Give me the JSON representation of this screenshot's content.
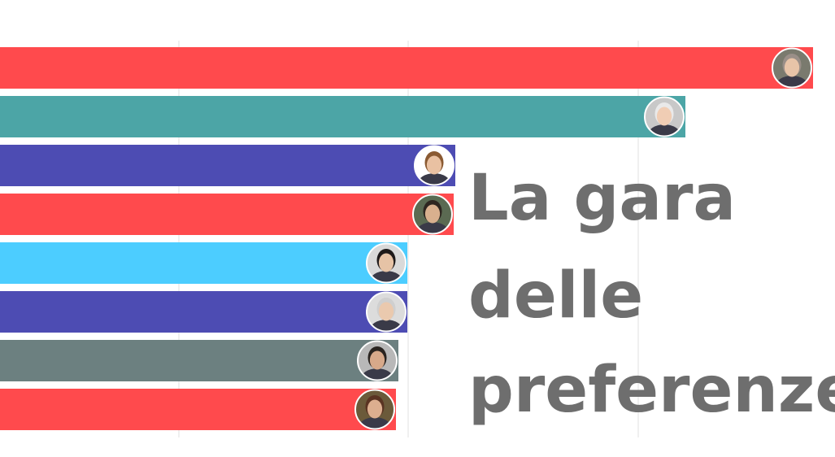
{
  "chart_data": {
    "type": "bar",
    "orientation": "horizontal",
    "title_lines": [
      "La gara",
      "delle",
      "preferenze"
    ],
    "xlim": [
      0,
      1000
    ],
    "grid": true,
    "legend": "none",
    "bars": [
      {
        "value": 1000,
        "color": "#ff4a4d",
        "avatar": "person-avatar-1"
      },
      {
        "value": 843,
        "color": "#4ca5a6",
        "avatar": "person-avatar-2"
      },
      {
        "value": 560,
        "color": "#4d4cb3",
        "avatar": "person-avatar-3"
      },
      {
        "value": 558,
        "color": "#ff4a4d",
        "avatar": "person-avatar-4"
      },
      {
        "value": 501,
        "color": "#4ccdff",
        "avatar": "person-avatar-5"
      },
      {
        "value": 501,
        "color": "#4d4cb3",
        "avatar": "person-avatar-6"
      },
      {
        "value": 490,
        "color": "#6c8080",
        "avatar": "person-avatar-7"
      },
      {
        "value": 487,
        "color": "#ff4a4d",
        "avatar": "person-avatar-8"
      }
    ]
  }
}
